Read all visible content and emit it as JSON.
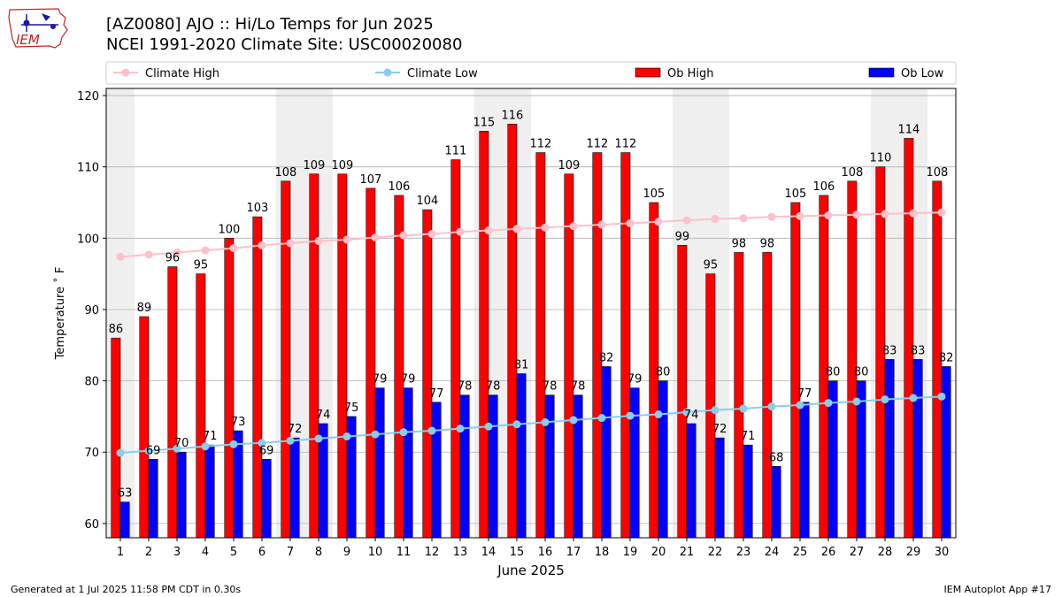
{
  "header": {
    "title": "[AZ0080] AJO :: Hi/Lo Temps for Jun 2025",
    "subtitle": "NCEI 1991-2020 Climate Site: USC00020080",
    "logo_text": "IEM"
  },
  "footer": {
    "generated": "Generated at 1 Jul 2025 11:58 PM CDT in 0.30s",
    "app": "IEM Autoplot App #17"
  },
  "colors": {
    "ob_high": "#ff0000",
    "ob_low": "#0000ff",
    "climate_high": "#ffc0cb",
    "climate_low": "#87ceeb",
    "weekend_shade": "#efefef",
    "grid": "#b0b0b0",
    "logo_red": "#cc2222",
    "logo_blue": "#1a1aa6"
  },
  "chart_data": {
    "type": "bar",
    "xlabel": "June 2025",
    "ylabel": "Temperature ˚ F",
    "ylim": [
      58,
      121
    ],
    "yticks": [
      60,
      70,
      80,
      90,
      100,
      110,
      120
    ],
    "grid": true,
    "legend_position": "top",
    "categories": [
      "1",
      "2",
      "3",
      "4",
      "5",
      "6",
      "7",
      "8",
      "9",
      "10",
      "11",
      "12",
      "13",
      "14",
      "15",
      "16",
      "17",
      "18",
      "19",
      "20",
      "21",
      "22",
      "23",
      "24",
      "25",
      "26",
      "27",
      "28",
      "29",
      "30"
    ],
    "shaded_days": [
      1,
      7,
      8,
      14,
      15,
      21,
      22,
      28,
      29
    ],
    "series": [
      {
        "name": "Ob High",
        "kind": "bar",
        "values": [
          86,
          89,
          96,
          95,
          100,
          103,
          108,
          109,
          109,
          107,
          106,
          104,
          111,
          115,
          116,
          112,
          109,
          112,
          112,
          105,
          99,
          95,
          98,
          98,
          105,
          106,
          108,
          110,
          114,
          108
        ]
      },
      {
        "name": "Ob Low",
        "kind": "bar",
        "values": [
          63,
          69,
          70,
          71,
          73,
          69,
          72,
          74,
          75,
          79,
          79,
          77,
          78,
          78,
          81,
          78,
          78,
          82,
          79,
          80,
          74,
          72,
          71,
          68,
          77,
          80,
          80,
          83,
          83,
          82
        ]
      },
      {
        "name": "Climate High",
        "kind": "line",
        "values": [
          97.4,
          97.7,
          98.0,
          98.3,
          98.6,
          99.0,
          99.3,
          99.6,
          99.8,
          100.1,
          100.4,
          100.6,
          100.9,
          101.1,
          101.3,
          101.5,
          101.7,
          101.9,
          102.1,
          102.3,
          102.5,
          102.7,
          102.8,
          103.0,
          103.1,
          103.2,
          103.3,
          103.4,
          103.5,
          103.6
        ]
      },
      {
        "name": "Climate Low",
        "kind": "line",
        "values": [
          69.9,
          70.2,
          70.5,
          70.8,
          71.1,
          71.3,
          71.6,
          71.9,
          72.2,
          72.5,
          72.8,
          73.0,
          73.3,
          73.6,
          73.9,
          74.2,
          74.5,
          74.8,
          75.1,
          75.3,
          75.6,
          75.9,
          76.1,
          76.4,
          76.6,
          76.9,
          77.1,
          77.4,
          77.6,
          77.8
        ]
      }
    ],
    "legend": [
      "Climate High",
      "Climate Low",
      "Ob High",
      "Ob Low"
    ]
  }
}
